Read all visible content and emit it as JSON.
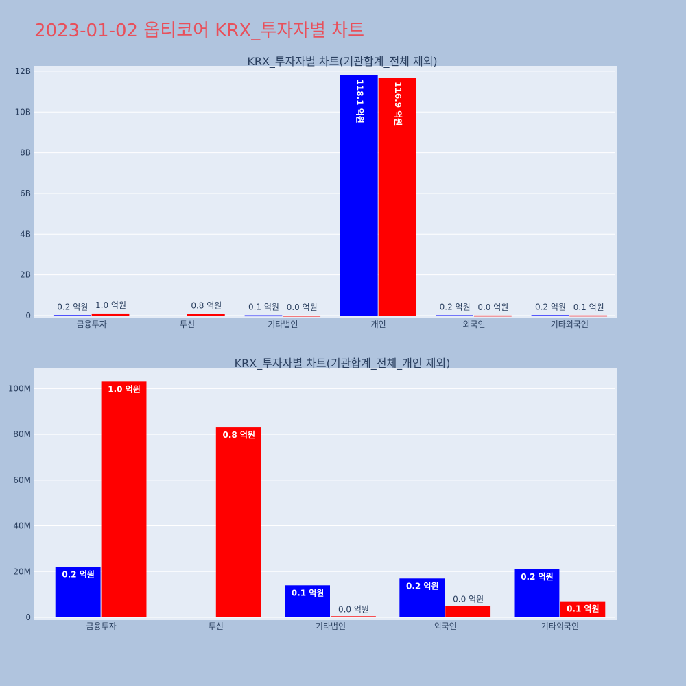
{
  "title": "2023-01-02 옵티코어 KRX_투자자별 차트",
  "colors": {
    "series_a": "#0000ff",
    "series_b": "#ff0000",
    "plot_bg": "#e5ecf6",
    "page_bg": "#b0c4de"
  },
  "chart_data": [
    {
      "type": "bar",
      "title": "KRX_투자자별 차트(기관합계_전체 제외)",
      "categories": [
        "금융투자",
        "투신",
        "기타법인",
        "개인",
        "외국인",
        "기타외국인"
      ],
      "ylim": [
        0,
        12200000000
      ],
      "yticks": [
        0,
        2000000000,
        4000000000,
        6000000000,
        8000000000,
        10000000000,
        12000000000
      ],
      "ytick_labels": [
        "0",
        "2B",
        "4B",
        "6B",
        "8B",
        "10B",
        "12B"
      ],
      "series": [
        {
          "values": [
            22000000,
            null,
            14000000,
            11810000000,
            17000000,
            21000000
          ],
          "labels": [
            "0.2 억원",
            "",
            "0.1 억원",
            "118.1 억원",
            "0.2 억원",
            "0.2 억원"
          ]
        },
        {
          "values": [
            103000000,
            83000000,
            500000,
            11690000000,
            5000000,
            7000000
          ],
          "labels": [
            "1.0 억원",
            "0.8 억원",
            "0.0 억원",
            "116.9 억원",
            "0.0 억원",
            "0.1 억원"
          ]
        }
      ]
    },
    {
      "type": "bar",
      "title": "KRX_투자자별 차트(기관합계_전체_개인 제외)",
      "categories": [
        "금융투자",
        "투신",
        "기타법인",
        "외국인",
        "기타외국인"
      ],
      "ylim": [
        0,
        108500000
      ],
      "yticks": [
        0,
        20000000,
        40000000,
        60000000,
        80000000,
        100000000
      ],
      "ytick_labels": [
        "0",
        "20M",
        "40M",
        "60M",
        "80M",
        "100M"
      ],
      "series": [
        {
          "values": [
            22000000,
            null,
            14000000,
            17000000,
            21000000
          ],
          "labels": [
            "0.2 억원",
            "",
            "0.1 억원",
            "0.2 억원",
            "0.2 억원"
          ]
        },
        {
          "values": [
            103000000,
            83000000,
            500000,
            5000000,
            7000000
          ],
          "labels": [
            "1.0 억원",
            "0.8 억원",
            "0.0 억원",
            "0.0 억원",
            "0.1 억원"
          ]
        }
      ]
    }
  ]
}
